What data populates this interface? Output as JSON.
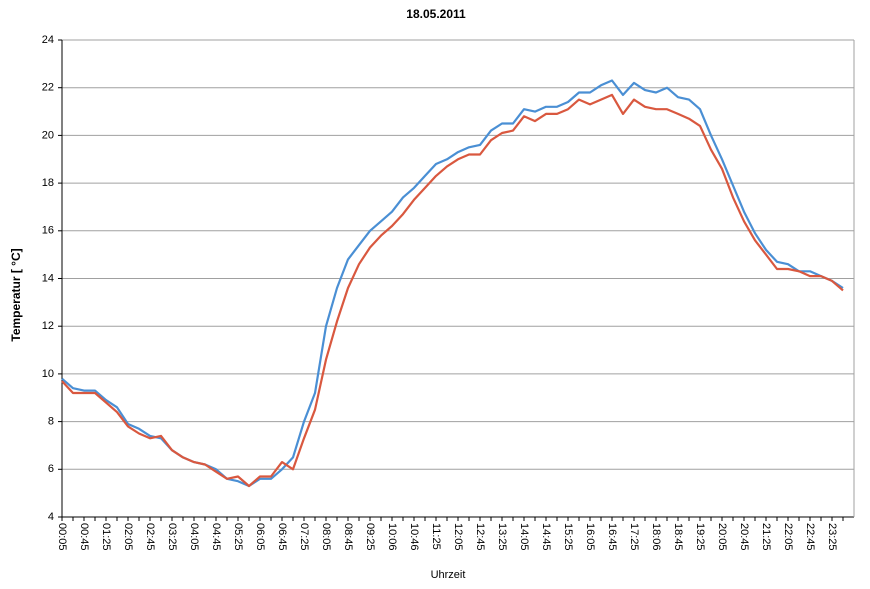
{
  "chart_data": {
    "type": "line",
    "title": "18.05.2011",
    "x_label": "Uhrzeit",
    "y_label": "Temperatur [ °C]",
    "categories": [
      "00:05",
      null,
      "00:45",
      null,
      "01:25",
      null,
      "02:05",
      null,
      "02:45",
      null,
      "03:25",
      null,
      "04:05",
      null,
      "04:45",
      null,
      "05:25",
      null,
      "06:05",
      null,
      "06:45",
      null,
      "07:25",
      null,
      "08:05",
      null,
      "08:45",
      null,
      "09:25",
      null,
      "10:06",
      null,
      "10:46",
      null,
      "11:25",
      null,
      "12:05",
      null,
      "12:45",
      null,
      "13:25",
      null,
      "14:05",
      null,
      "14:45",
      null,
      "15:25",
      null,
      "16:05",
      null,
      "16:45",
      null,
      "17:25",
      null,
      "18:06",
      null,
      "18:45",
      null,
      "19:25",
      null,
      "20:05",
      null,
      "20:45",
      null,
      "21:25",
      null,
      "22:05",
      null,
      "22:45",
      null,
      "23:25",
      null
    ],
    "series": [
      {
        "color": "#4a8fd4",
        "values": [
          9.8,
          9.4,
          9.3,
          9.3,
          8.9,
          8.6,
          7.9,
          7.7,
          7.4,
          7.3,
          6.8,
          6.5,
          6.3,
          6.2,
          6.0,
          5.6,
          5.5,
          5.3,
          5.6,
          5.6,
          6.0,
          6.5,
          8.0,
          9.2,
          12.0,
          13.6,
          14.8,
          15.4,
          16.0,
          16.4,
          16.8,
          17.4,
          17.8,
          18.3,
          18.8,
          19.0,
          19.3,
          19.5,
          19.6,
          20.2,
          20.5,
          20.5,
          21.1,
          21.0,
          21.2,
          21.2,
          21.4,
          21.8,
          21.8,
          22.1,
          22.3,
          21.7,
          22.2,
          21.9,
          21.8,
          22.0,
          21.6,
          21.5,
          21.1,
          20.0,
          19.0,
          17.9,
          16.8,
          15.9,
          15.2,
          14.7,
          14.6,
          14.3,
          14.3,
          14.1,
          13.9,
          13.6
        ]
      },
      {
        "color": "#d9583f",
        "values": [
          9.7,
          9.2,
          9.2,
          9.2,
          8.8,
          8.4,
          7.8,
          7.5,
          7.3,
          7.4,
          6.8,
          6.5,
          6.3,
          6.2,
          5.9,
          5.6,
          5.7,
          5.3,
          5.7,
          5.7,
          6.3,
          6.0,
          7.3,
          8.5,
          10.6,
          12.2,
          13.6,
          14.6,
          15.3,
          15.8,
          16.2,
          16.7,
          17.3,
          17.8,
          18.3,
          18.7,
          19.0,
          19.2,
          19.2,
          19.8,
          20.1,
          20.2,
          20.8,
          20.6,
          20.9,
          20.9,
          21.1,
          21.5,
          21.3,
          21.5,
          21.7,
          20.9,
          21.5,
          21.2,
          21.1,
          21.1,
          20.9,
          20.7,
          20.4,
          19.4,
          18.6,
          17.4,
          16.4,
          15.6,
          15.0,
          14.4,
          14.4,
          14.3,
          14.1,
          14.1,
          13.9,
          13.5
        ]
      }
    ],
    "ylim": [
      4,
      24
    ],
    "yticks": [
      4,
      6,
      8,
      10,
      12,
      14,
      16,
      18,
      20,
      22,
      24
    ],
    "grid": true
  }
}
